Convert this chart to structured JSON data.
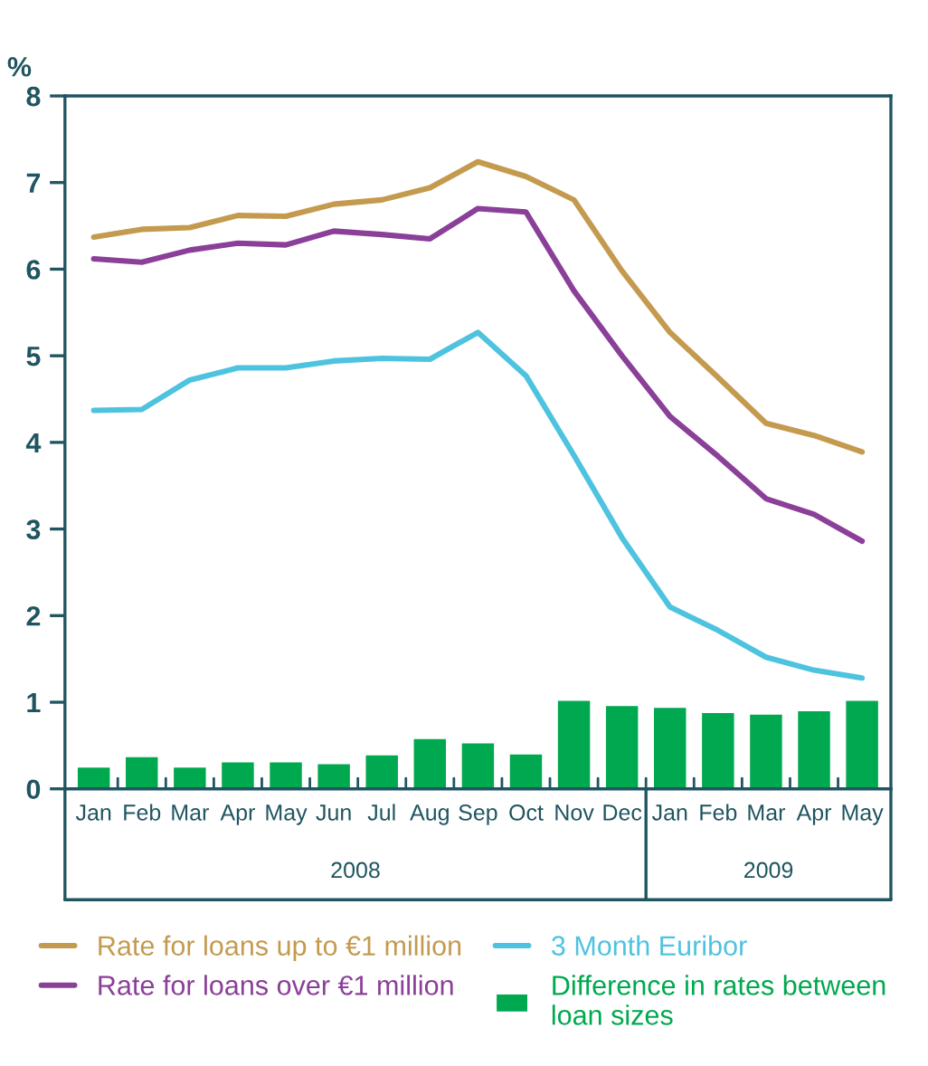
{
  "chart_data": {
    "type": "line",
    "ylabel": "%",
    "categories": [
      "Jan",
      "Feb",
      "Mar",
      "Apr",
      "May",
      "Jun",
      "Jul",
      "Aug",
      "Sep",
      "Oct",
      "Nov",
      "Dec",
      "Jan",
      "Feb",
      "Mar",
      "Apr",
      "May"
    ],
    "series": [
      {
        "name": "Difference in rates between loan sizes",
        "type": "bar",
        "color": "#00a84f",
        "values": [
          0.26,
          0.38,
          0.26,
          0.32,
          0.32,
          0.3,
          0.4,
          0.59,
          0.54,
          0.41,
          1.03,
          0.97,
          0.95,
          0.89,
          0.87,
          0.91,
          1.03
        ]
      },
      {
        "name": "Rate for loans up to €1 million",
        "color": "#c49a4f",
        "values": [
          6.37,
          6.46,
          6.48,
          6.62,
          6.61,
          6.75,
          6.8,
          6.94,
          7.24,
          7.07,
          6.8,
          5.98,
          5.27,
          4.75,
          4.22,
          4.08,
          3.89
        ]
      },
      {
        "name": "Rate for loans over €1 million",
        "color": "#8a3f98",
        "values": [
          6.12,
          6.08,
          6.22,
          6.3,
          6.28,
          6.44,
          6.4,
          6.35,
          6.7,
          6.66,
          5.75,
          5.0,
          4.3,
          3.84,
          3.35,
          3.17,
          2.86
        ]
      },
      {
        "name": "3 Month Euribor",
        "color": "#4ec3df",
        "values": [
          4.37,
          4.38,
          4.72,
          4.86,
          4.86,
          4.94,
          4.97,
          4.96,
          5.27,
          4.77,
          3.85,
          2.9,
          2.1,
          1.83,
          1.52,
          1.37,
          1.28
        ]
      }
    ],
    "annotations": [
      "2008",
      "2009"
    ],
    "ylim": [
      0,
      8
    ],
    "yticks": [
      0,
      1,
      2,
      3,
      4,
      5,
      6,
      7,
      8
    ],
    "grid": false,
    "legend": "bottom",
    "line_style": "solid",
    "marker": "none"
  }
}
